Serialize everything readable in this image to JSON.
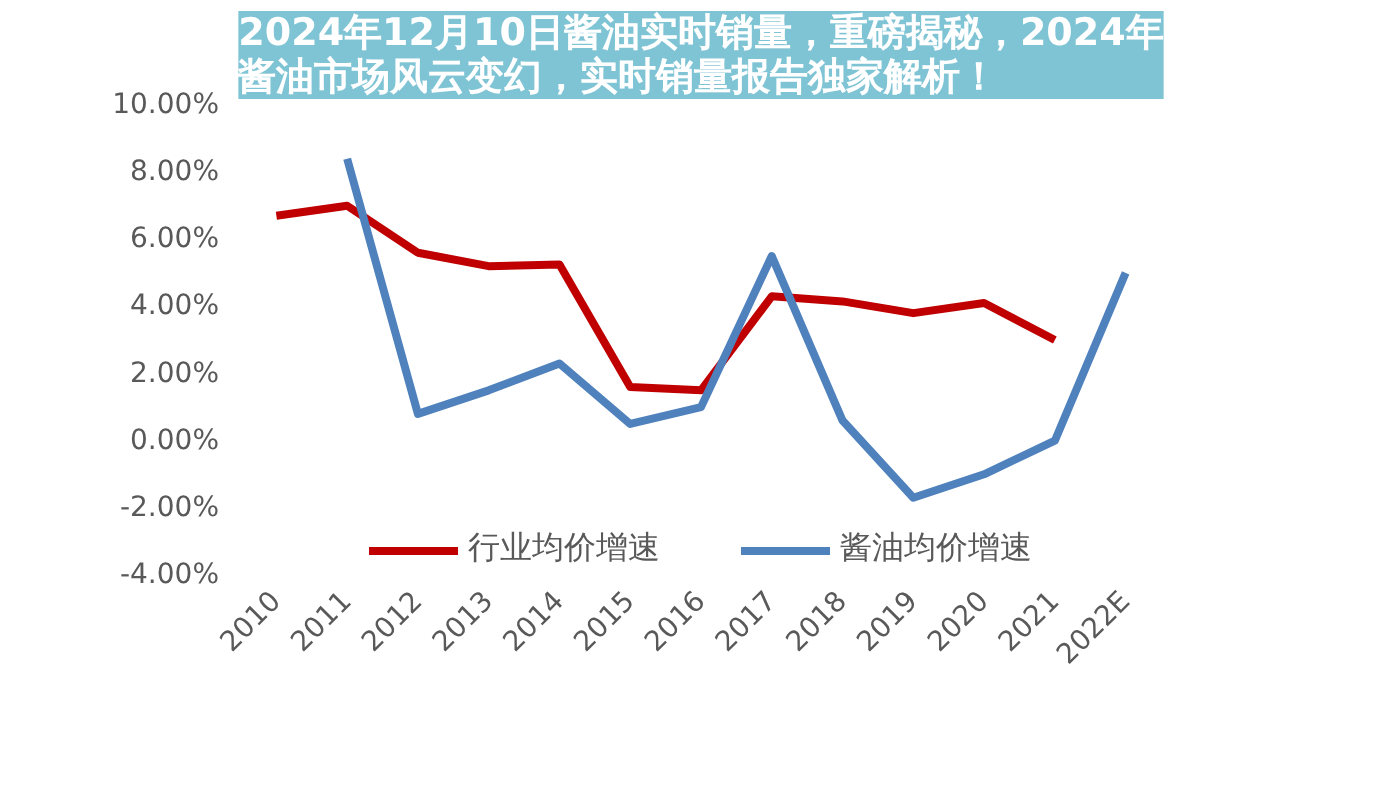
{
  "chart_data": {
    "type": "line",
    "title": "2024年12月10日酱油实时销量，重磅揭秘，2024年酱油市场风云变幻，实时销量报告独家解析！",
    "categories": [
      "2010",
      "2011",
      "2012",
      "2013",
      "2014",
      "2015",
      "2016",
      "2017",
      "2018",
      "2019",
      "2020",
      "2021",
      "2022E"
    ],
    "series": [
      {
        "name": "行业均价增速",
        "color": "#c00000",
        "values": [
          6.7,
          7.0,
          5.6,
          5.2,
          5.25,
          1.6,
          1.5,
          4.3,
          4.15,
          3.8,
          4.1,
          3.0,
          null
        ]
      },
      {
        "name": "酱油均价增速",
        "color": "#4f81bd",
        "values": [
          null,
          8.4,
          0.8,
          1.5,
          2.3,
          0.5,
          1.0,
          5.5,
          0.6,
          -1.7,
          -1.0,
          0.0,
          5.0
        ]
      }
    ],
    "ylim": [
      -4,
      10
    ],
    "yticks": [
      {
        "value": -4,
        "label": "-4.00%"
      },
      {
        "value": -2,
        "label": "-2.00%"
      },
      {
        "value": 0,
        "label": "0.00%"
      },
      {
        "value": 2,
        "label": "2.00%"
      },
      {
        "value": 4,
        "label": "4.00%"
      },
      {
        "value": 6,
        "label": "6.00%"
      },
      {
        "value": 8,
        "label": "8.00%"
      },
      {
        "value": 10,
        "label": "10.00%"
      }
    ],
    "grid": false,
    "legend": "bottom",
    "marker": "none",
    "line_style": "solid"
  }
}
